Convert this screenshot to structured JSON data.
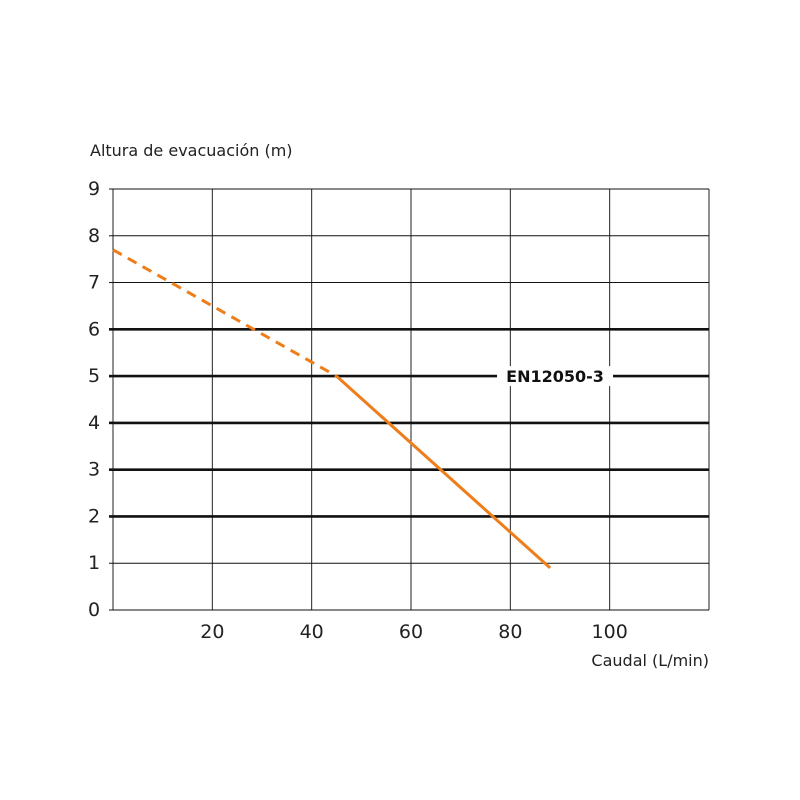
{
  "chart_data": {
    "type": "line",
    "ylabel": "Altura de evacuación (m)",
    "xlabel": "Caudal (L/min)",
    "xlim": [
      0,
      120
    ],
    "ylim": [
      0,
      9
    ],
    "x_ticks": [
      20,
      40,
      60,
      80,
      100
    ],
    "y_ticks": [
      0,
      1,
      2,
      3,
      4,
      5,
      6,
      7,
      8,
      9
    ],
    "y_thick_gridlines": [
      2,
      3,
      4,
      5,
      6
    ],
    "grid": true,
    "reference_line": {
      "label": "EN12050-3",
      "y": 5
    },
    "series": [
      {
        "style": "dashed",
        "color": "#ee7d1a",
        "points": [
          [
            0,
            7.7
          ],
          [
            45,
            5.0
          ]
        ]
      },
      {
        "style": "solid",
        "color": "#ee7d1a",
        "points": [
          [
            45,
            5.0
          ],
          [
            88,
            0.9
          ]
        ]
      }
    ]
  }
}
